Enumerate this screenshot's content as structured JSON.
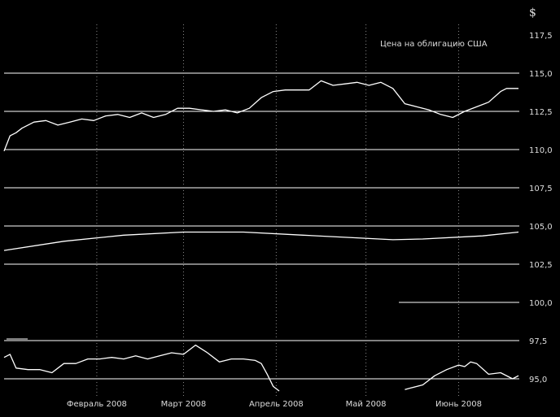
{
  "chart_data": {
    "type": "line",
    "title": "",
    "annotation": "Цена на облигацию США",
    "currency_symbol": "$",
    "ylim": [
      94.0,
      118.0
    ],
    "y_ticks": [
      "117,5",
      "115,0",
      "112,5",
      "110,0",
      "107,5",
      "105,0",
      "102,5",
      "100,0",
      "97,5",
      "95,0"
    ],
    "y_tick_values": [
      117.5,
      115.0,
      112.5,
      110.0,
      107.5,
      105.0,
      102.5,
      100.0,
      97.5,
      95.0
    ],
    "x_ticks": [
      "Февраль 2008",
      "Март 2008",
      "Апрель 2008",
      "Май 2008",
      "Июнь 2008"
    ],
    "x_tick_days": [
      31,
      60,
      91,
      121,
      152
    ],
    "xlim_days": [
      0,
      172
    ],
    "grid": "horizontal",
    "colors": {
      "background": "#000000",
      "line": "#ffffff",
      "text": "#dddddd"
    },
    "series": [
      {
        "x": [
          0,
          2,
          4,
          6,
          10,
          14,
          18,
          22,
          26,
          30,
          34,
          38,
          42,
          46,
          50,
          54,
          58,
          62,
          66,
          70,
          74,
          78,
          82,
          86,
          90,
          94,
          98,
          102,
          106,
          110,
          114,
          118,
          122,
          126,
          130,
          134,
          138,
          142,
          146,
          150,
          154,
          158,
          162,
          166,
          168,
          172
        ],
        "values": [
          109.9,
          110.9,
          111.1,
          111.4,
          111.8,
          111.9,
          111.6,
          111.8,
          112.0,
          111.9,
          112.2,
          112.3,
          112.1,
          112.4,
          112.1,
          112.3,
          112.7,
          112.7,
          112.6,
          112.5,
          112.6,
          112.4,
          112.7,
          113.4,
          113.8,
          113.9,
          113.9,
          113.9,
          114.5,
          114.2,
          114.3,
          114.4,
          114.2,
          114.4,
          114.0,
          113.0,
          112.8,
          112.6,
          112.3,
          112.1,
          112.5,
          112.8,
          113.1,
          113.8,
          114.0,
          114.0
        ]
      },
      {
        "x": [
          0,
          20,
          40,
          60,
          80,
          100,
          120,
          130,
          140,
          160,
          172
        ],
        "values": [
          103.4,
          104.0,
          104.4,
          104.6,
          104.6,
          104.4,
          104.2,
          104.1,
          104.15,
          104.35,
          104.6
        ]
      },
      {
        "x": [
          0,
          2,
          4,
          8,
          12,
          16,
          20,
          24,
          28,
          32,
          36,
          40,
          44,
          48,
          52,
          56,
          60,
          64,
          68,
          72,
          76,
          80,
          84,
          86,
          88,
          90,
          92
        ],
        "values": [
          96.4,
          96.6,
          95.7,
          95.6,
          95.6,
          95.4,
          96.0,
          96.0,
          96.3,
          96.3,
          96.4,
          96.3,
          96.5,
          96.3,
          96.5,
          96.7,
          96.6,
          97.2,
          96.7,
          96.1,
          96.3,
          96.3,
          96.2,
          96.0,
          95.3,
          94.5,
          94.2
        ]
      },
      {
        "x": [
          134,
          136,
          140,
          144,
          148,
          152,
          154,
          156,
          158,
          162,
          166,
          170,
          172
        ],
        "values": [
          94.3,
          94.4,
          94.6,
          95.2,
          95.6,
          95.9,
          95.8,
          96.1,
          96.0,
          95.3,
          95.4,
          95.0,
          95.2
        ]
      }
    ]
  }
}
